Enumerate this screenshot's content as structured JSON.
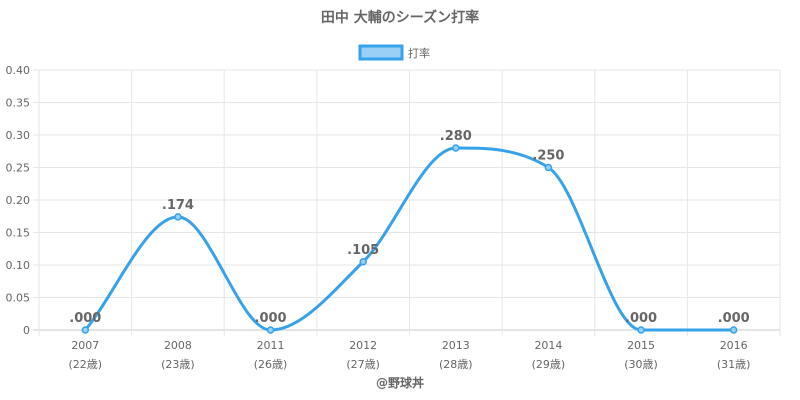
{
  "chart_data": {
    "type": "line",
    "title": "田中 大輔のシーズン打率",
    "categories": [
      "2007",
      "2008",
      "2011",
      "2012",
      "2013",
      "2014",
      "2015",
      "2016"
    ],
    "age_labels": [
      "(22歳)",
      "(23歳)",
      "(26歳)",
      "(27歳)",
      "(28歳)",
      "(29歳)",
      "(30歳)",
      "(31歳)"
    ],
    "series": [
      {
        "name": "打率",
        "values": [
          0.0,
          0.174,
          0.0,
          0.105,
          0.28,
          0.25,
          0.0,
          0.0
        ],
        "data_labels": [
          ".000",
          ".174",
          ".000",
          ".105",
          ".280",
          ".250",
          ".000",
          ".000"
        ]
      }
    ],
    "ylim": [
      0,
      0.4
    ],
    "y_ticks": [
      "0",
      "0.05",
      "0.10",
      "0.15",
      "0.20",
      "0.25",
      "0.30",
      "0.35",
      "0.40"
    ],
    "grid": true,
    "legend_position": "top",
    "colors": {
      "line": "#36a2eb",
      "fill": "#9ad0f5",
      "grid": "#e6e6e6",
      "text": "#666666"
    }
  },
  "footer": "@野球丼"
}
